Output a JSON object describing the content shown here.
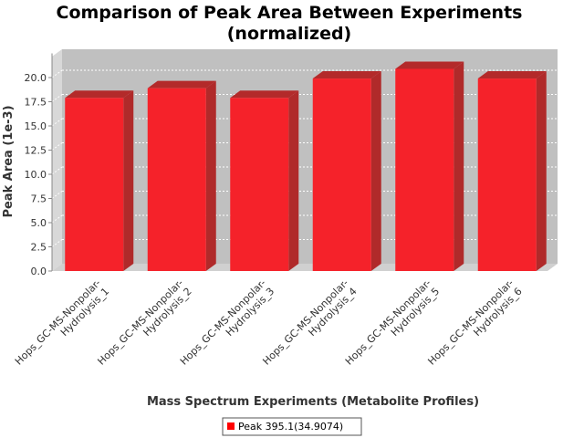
{
  "chart_data": {
    "type": "bar",
    "title_line1": "Comparison of Peak Area Between Experiments",
    "title_line2": "(normalized)",
    "xlabel": "Mass Spectrum Experiments (Metabolite Profiles)",
    "ylabel": "Peak Area (1e-3)",
    "categories": [
      [
        "Hops_GC-MS-Nonpolar-",
        "Hydrolysis_1"
      ],
      [
        "Hops_GC-MS-Nonpolar-",
        "Hydrolysis_2"
      ],
      [
        "Hops_GC-MS-Nonpolar-",
        "Hydrolysis_3"
      ],
      [
        "Hops_GC-MS-Nonpolar-",
        "Hydrolysis_4"
      ],
      [
        "Hops_GC-MS-Nonpolar-",
        "Hydrolysis_5"
      ],
      [
        "Hops_GC-MS-Nonpolar-",
        "Hydrolysis_6"
      ]
    ],
    "series": [
      {
        "name": "Peak 395.1(34.9074)",
        "values": [
          17.9,
          18.9,
          17.9,
          19.9,
          20.9,
          19.9
        ]
      }
    ],
    "yticks": [
      "0.0",
      "2.5",
      "5.0",
      "7.5",
      "10.0",
      "12.5",
      "15.0",
      "17.5",
      "20.0"
    ],
    "ylim": [
      0,
      22.5
    ],
    "grid": true,
    "legend_position": "bottom",
    "colors": {
      "bar_front": "#f5222a",
      "bar_top": "#b32a2a",
      "bar_side": "#b02a2a",
      "plot_bg": "#c0c0c0",
      "wall": "#d8d8d8",
      "floor": "#d0d0d0",
      "grid": "#ffffff",
      "text": "#333333",
      "legend_swatch": "#ff0000"
    }
  }
}
